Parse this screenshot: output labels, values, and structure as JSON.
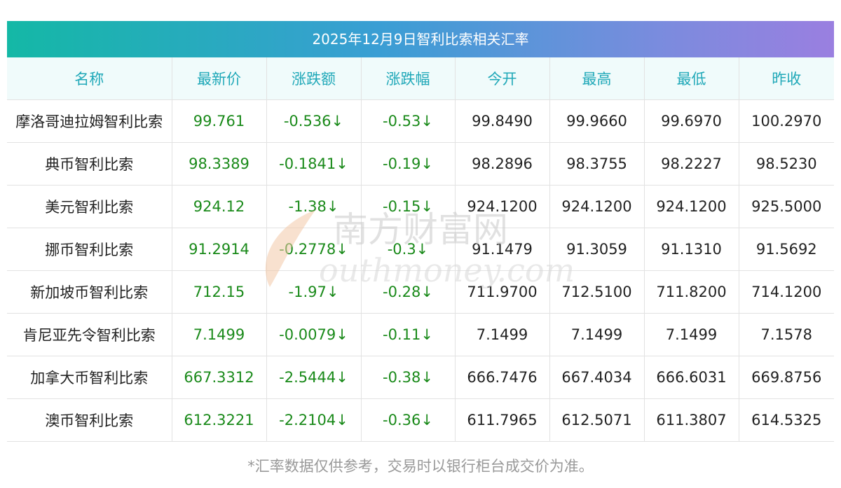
{
  "title": "2025年12月9日智利比索相关汇率",
  "headers": [
    "名称",
    "最新价",
    "涨跌额",
    "涨跌幅",
    "今开",
    "最高",
    "最低",
    "昨收"
  ],
  "rows": [
    {
      "name": "摩洛哥迪拉姆智利比索",
      "latest": "99.761",
      "change": "-0.536↓",
      "pct": "-0.53↓",
      "open": "99.8490",
      "high": "99.9660",
      "low": "99.6970",
      "prev": "100.2970"
    },
    {
      "name": "典币智利比索",
      "latest": "98.3389",
      "change": "-0.1841↓",
      "pct": "-0.19↓",
      "open": "98.2896",
      "high": "98.3755",
      "low": "98.2227",
      "prev": "98.5230"
    },
    {
      "name": "美元智利比索",
      "latest": "924.12",
      "change": "-1.38↓",
      "pct": "-0.15↓",
      "open": "924.1200",
      "high": "924.1200",
      "low": "924.1200",
      "prev": "925.5000"
    },
    {
      "name": "挪币智利比索",
      "latest": "91.2914",
      "change": "-0.2778↓",
      "pct": "-0.3↓",
      "open": "91.1479",
      "high": "91.3059",
      "low": "91.1310",
      "prev": "91.5692"
    },
    {
      "name": "新加坡币智利比索",
      "latest": "712.15",
      "change": "-1.97↓",
      "pct": "-0.28↓",
      "open": "711.9700",
      "high": "712.5100",
      "low": "711.8200",
      "prev": "714.1200"
    },
    {
      "name": "肯尼亚先令智利比索",
      "latest": "7.1499",
      "change": "-0.0079↓",
      "pct": "-0.11↓",
      "open": "7.1499",
      "high": "7.1499",
      "low": "7.1499",
      "prev": "7.1578"
    },
    {
      "name": "加拿大币智利比索",
      "latest": "667.3312",
      "change": "-2.5444↓",
      "pct": "-0.38↓",
      "open": "666.7476",
      "high": "667.4034",
      "low": "666.6031",
      "prev": "669.8756"
    },
    {
      "name": "澳币智利比索",
      "latest": "612.3221",
      "change": "-2.2104↓",
      "pct": "-0.36↓",
      "open": "611.7965",
      "high": "612.5071",
      "low": "611.3807",
      "prev": "614.5325"
    }
  ],
  "footnote": "*汇率数据仅供参考，交易时以银行柜台成交价为准。",
  "watermark": {
    "cn": "南方财富网",
    "en": "outhmoney.com"
  },
  "colors": {
    "header_text": "#1fa8b8",
    "value_green": "#1a8a1a",
    "header_bg": "#f0fbfb"
  }
}
